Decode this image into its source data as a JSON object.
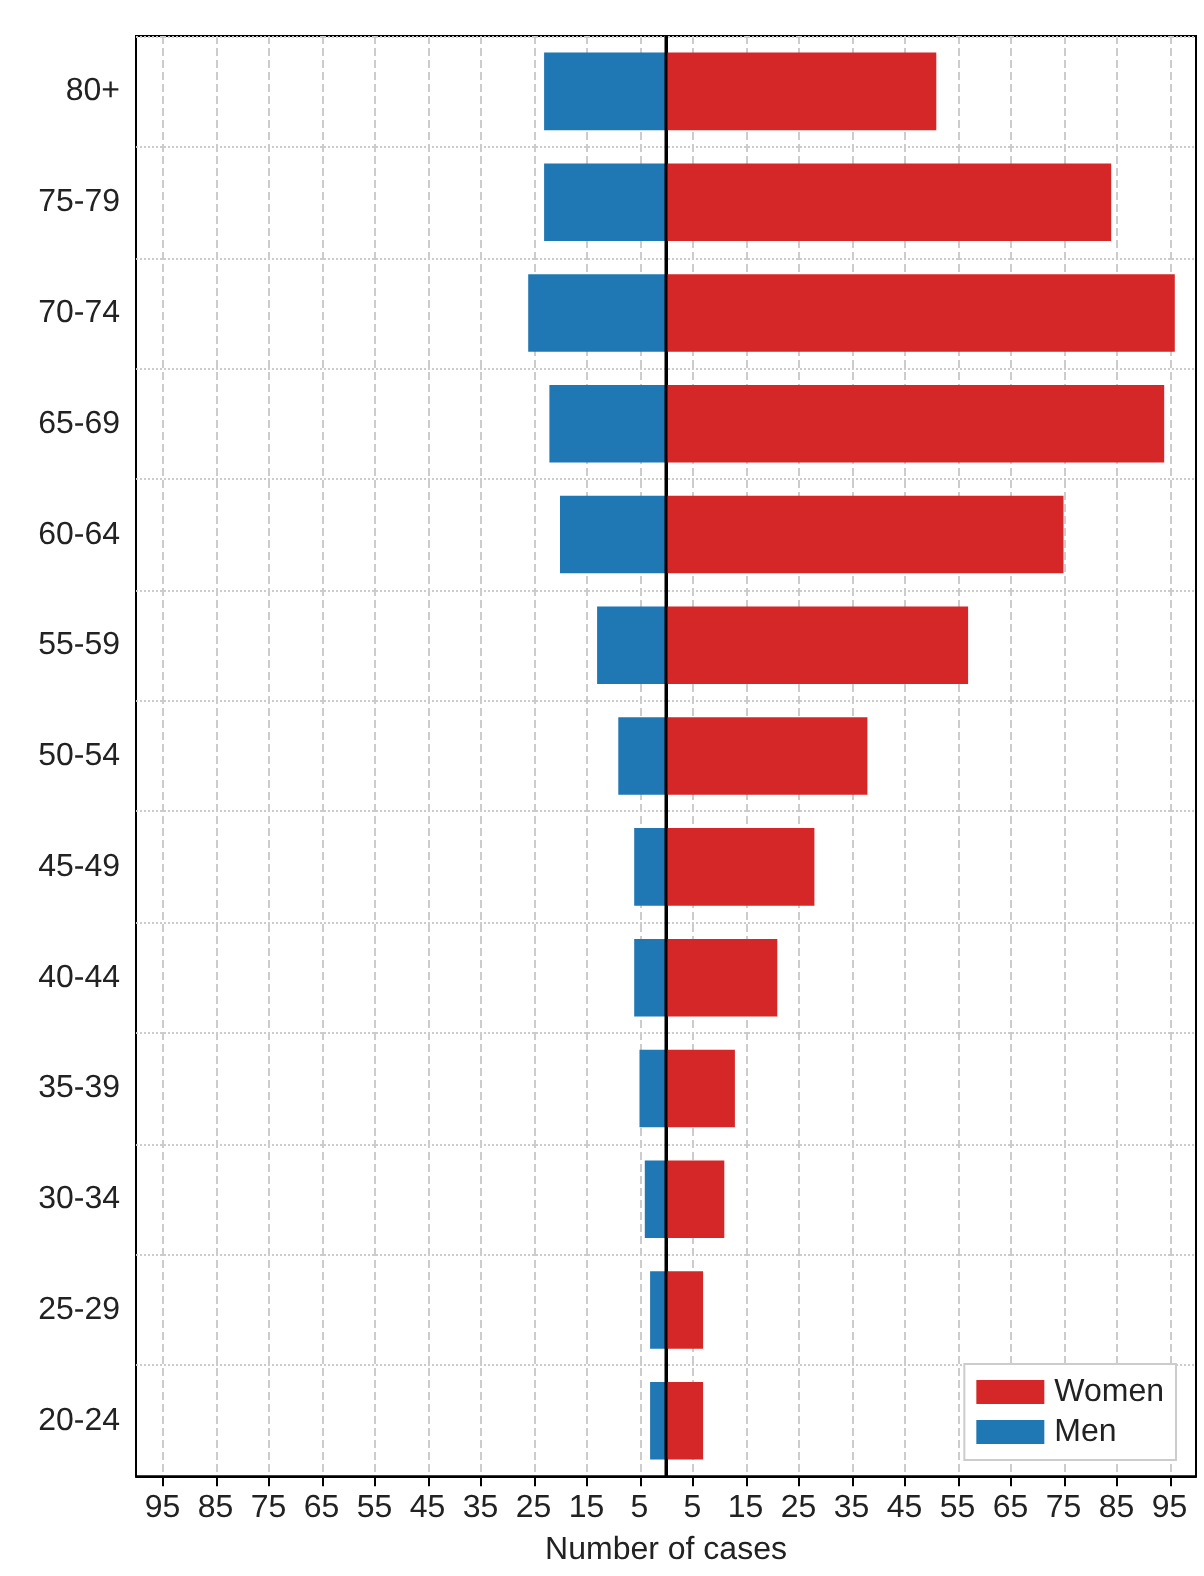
{
  "chart_data": {
    "type": "bar",
    "orientation": "horizontal",
    "stacked": true,
    "xlabel": "Number of cases",
    "categories": [
      "80+",
      "75-79",
      "70-74",
      "65-69",
      "60-64",
      "55-59",
      "50-54",
      "45-49",
      "40-44",
      "35-39",
      "30-34",
      "25-29",
      "20-24"
    ],
    "series": [
      {
        "name": "Women",
        "color": "#d62728",
        "values": [
          51,
          84,
          96,
          94,
          75,
          57,
          38,
          28,
          21,
          13,
          11,
          7,
          7
        ]
      },
      {
        "name": "Men",
        "color": "#1f77b4",
        "values": [
          -23,
          -23,
          -26,
          -22,
          -20,
          -13,
          -9,
          -6,
          -6,
          -5,
          -4,
          -3,
          -3
        ]
      }
    ],
    "xlim": [
      -100,
      100
    ],
    "xticks": [
      {
        "value": -95,
        "label": "95"
      },
      {
        "value": -85,
        "label": "85"
      },
      {
        "value": -75,
        "label": "75"
      },
      {
        "value": -65,
        "label": "65"
      },
      {
        "value": -55,
        "label": "55"
      },
      {
        "value": -45,
        "label": "45"
      },
      {
        "value": -35,
        "label": "35"
      },
      {
        "value": -25,
        "label": "25"
      },
      {
        "value": -15,
        "label": "15"
      },
      {
        "value": -5,
        "label": "5"
      },
      5,
      15,
      25,
      35,
      45,
      55,
      65,
      75,
      85,
      95
    ],
    "ref_lines": [
      {
        "axis": "x",
        "value": 0,
        "color": "#000000"
      }
    ],
    "grid": true,
    "legend": "bottom right"
  }
}
